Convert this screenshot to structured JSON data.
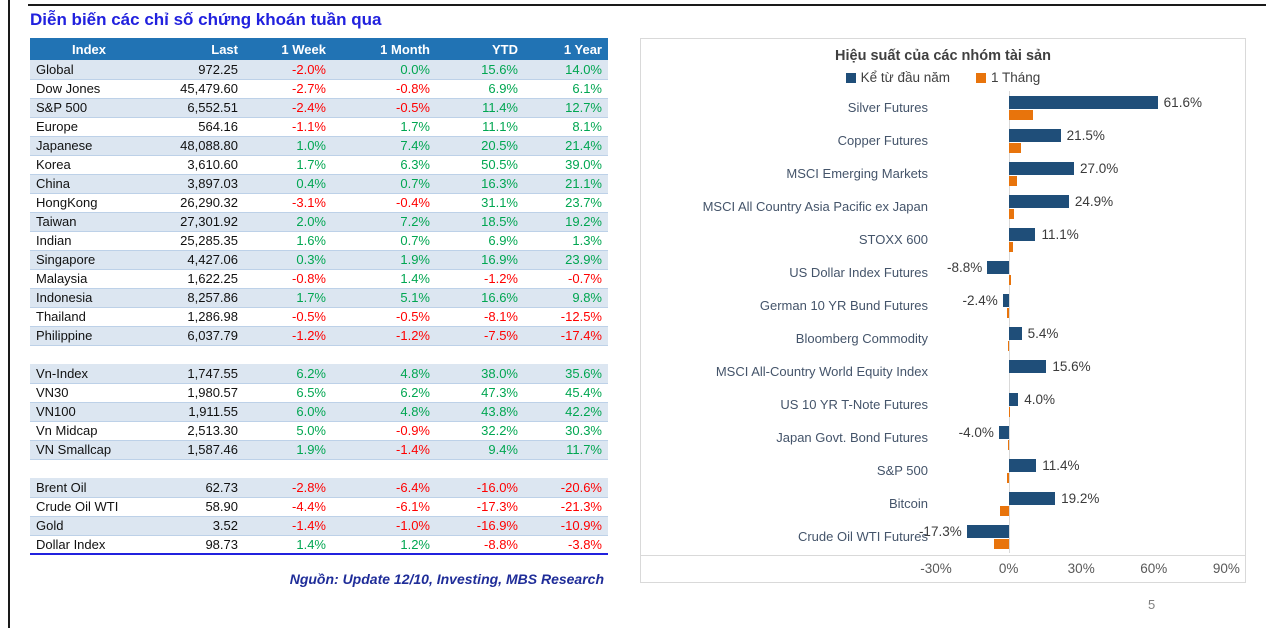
{
  "title": "Diễn biến các chỉ số chứng khoán tuần qua",
  "source_note": "Nguồn: Update 12/10, Investing, MBS Research",
  "page_number": "5",
  "colors": {
    "header_bg": "#2173B4",
    "row_shade": "#DCE6F1",
    "positive": "#00A651",
    "negative": "#FF0000",
    "title_blue": "#2121DE",
    "source_navy": "#1F2D99",
    "bar_ytd": "#1F4E79",
    "bar_month": "#E8740C"
  },
  "table": {
    "headers": [
      "Index",
      "Last",
      "1 Week",
      "1 Month",
      "YTD",
      "1 Year"
    ],
    "rows": [
      {
        "name": "Global",
        "last": "972.25",
        "w1": "-2.0%",
        "m1": "0.0%",
        "ytd": "15.6%",
        "y1": "14.0%"
      },
      {
        "name": "Dow Jones",
        "last": "45,479.60",
        "w1": "-2.7%",
        "m1": "-0.8%",
        "ytd": "6.9%",
        "y1": "6.1%"
      },
      {
        "name": "S&P 500",
        "last": "6,552.51",
        "w1": "-2.4%",
        "m1": "-0.5%",
        "ytd": "11.4%",
        "y1": "12.7%"
      },
      {
        "name": "Europe",
        "last": "564.16",
        "w1": "-1.1%",
        "m1": "1.7%",
        "ytd": "11.1%",
        "y1": "8.1%"
      },
      {
        "name": "Japanese",
        "last": "48,088.80",
        "w1": "1.0%",
        "m1": "7.4%",
        "ytd": "20.5%",
        "y1": "21.4%"
      },
      {
        "name": "Korea",
        "last": "3,610.60",
        "w1": "1.7%",
        "m1": "6.3%",
        "ytd": "50.5%",
        "y1": "39.0%"
      },
      {
        "name": "China",
        "last": "3,897.03",
        "w1": "0.4%",
        "m1": "0.7%",
        "ytd": "16.3%",
        "y1": "21.1%"
      },
      {
        "name": "HongKong",
        "last": "26,290.32",
        "w1": "-3.1%",
        "m1": "-0.4%",
        "ytd": "31.1%",
        "y1": "23.7%"
      },
      {
        "name": "Taiwan",
        "last": "27,301.92",
        "w1": "2.0%",
        "m1": "7.2%",
        "ytd": "18.5%",
        "y1": "19.2%"
      },
      {
        "name": "Indian",
        "last": "25,285.35",
        "w1": "1.6%",
        "m1": "0.7%",
        "ytd": "6.9%",
        "y1": "1.3%"
      },
      {
        "name": "Singapore",
        "last": "4,427.06",
        "w1": "0.3%",
        "m1": "1.9%",
        "ytd": "16.9%",
        "y1": "23.9%"
      },
      {
        "name": "Malaysia",
        "last": "1,622.25",
        "w1": "-0.8%",
        "m1": "1.4%",
        "ytd": "-1.2%",
        "y1": "-0.7%"
      },
      {
        "name": "Indonesia",
        "last": "8,257.86",
        "w1": "1.7%",
        "m1": "5.1%",
        "ytd": "16.6%",
        "y1": "9.8%"
      },
      {
        "name": "Thailand",
        "last": "1,286.98",
        "w1": "-0.5%",
        "m1": "-0.5%",
        "ytd": "-8.1%",
        "y1": "-12.5%"
      },
      {
        "name": "Philippine",
        "last": "6,037.79",
        "w1": "-1.2%",
        "m1": "-1.2%",
        "ytd": "-7.5%",
        "y1": "-17.4%"
      },
      {
        "name": "",
        "last": "",
        "w1": "",
        "m1": "",
        "ytd": "",
        "y1": ""
      },
      {
        "name": "Vn-Index",
        "last": "1,747.55",
        "w1": "6.2%",
        "m1": "4.8%",
        "ytd": "38.0%",
        "y1": "35.6%"
      },
      {
        "name": "VN30",
        "last": "1,980.57",
        "w1": "6.5%",
        "m1": "6.2%",
        "ytd": "47.3%",
        "y1": "45.4%"
      },
      {
        "name": "VN100",
        "last": "1,911.55",
        "w1": "6.0%",
        "m1": "4.8%",
        "ytd": "43.8%",
        "y1": "42.2%"
      },
      {
        "name": "Vn Midcap",
        "last": "2,513.30",
        "w1": "5.0%",
        "m1": "-0.9%",
        "ytd": "32.2%",
        "y1": "30.3%"
      },
      {
        "name": "VN Smallcap",
        "last": "1,587.46",
        "w1": "1.9%",
        "m1": "-1.4%",
        "ytd": "9.4%",
        "y1": "11.7%"
      },
      {
        "name": "",
        "last": "",
        "w1": "",
        "m1": "",
        "ytd": "",
        "y1": ""
      },
      {
        "name": "Brent Oil",
        "last": "62.73",
        "w1": "-2.8%",
        "m1": "-6.4%",
        "ytd": "-16.0%",
        "y1": "-20.6%"
      },
      {
        "name": "Crude Oil WTI",
        "last": "58.90",
        "w1": "-4.4%",
        "m1": "-6.1%",
        "ytd": "-17.3%",
        "y1": "-21.3%"
      },
      {
        "name": "Gold",
        "last": "3.52",
        "w1": "-1.4%",
        "m1": "-1.0%",
        "ytd": "-16.9%",
        "y1": "-10.9%"
      },
      {
        "name": "Dollar Index",
        "last": "98.73",
        "w1": "1.4%",
        "m1": "1.2%",
        "ytd": "-8.8%",
        "y1": "-3.8%"
      }
    ]
  },
  "chart_data": {
    "type": "bar",
    "orientation": "horizontal",
    "title": "Hiệu suất của các nhóm tài sản",
    "legend_position": "top",
    "grid": false,
    "categories": [
      "Silver Futures",
      "Copper Futures",
      "MSCI Emerging Markets",
      "MSCI All Country Asia Pacific ex Japan",
      "STOXX 600",
      "US Dollar Index Futures",
      "German 10 YR Bund Futures",
      "Bloomberg Commodity",
      "MSCI All-Country World Equity Index",
      "US 10 YR T-Note Futures",
      "Japan Govt. Bond Futures",
      "S&P 500",
      "Bitcoin",
      "Crude Oil WTI Futures"
    ],
    "series": [
      {
        "name": "Kể từ đầu năm",
        "color": "#1F4E79",
        "values": [
          61.6,
          21.5,
          27.0,
          24.9,
          11.1,
          -8.8,
          -2.4,
          5.4,
          15.6,
          4.0,
          -4.0,
          11.4,
          19.2,
          -17.3
        ],
        "labels": [
          "61.6%",
          "21.5%",
          "27.0%",
          "24.9%",
          "11.1%",
          "-8.8%",
          "-2.4%",
          "5.4%",
          "15.6%",
          "4.0%",
          "-4.0%",
          "11.4%",
          "19.2%",
          "-17.3%"
        ]
      },
      {
        "name": "1 Tháng",
        "color": "#E8740C",
        "values": [
          10.2,
          5.2,
          3.3,
          2.3,
          1.7,
          1.2,
          -0.5,
          -0.3,
          0.0,
          0.3,
          -0.3,
          -0.5,
          -3.4,
          -6.1
        ]
      }
    ],
    "x_ticks": [
      "-30%",
      "0%",
      "30%",
      "60%",
      "90%"
    ],
    "x_tick_values": [
      -30,
      0,
      30,
      60,
      90
    ],
    "xlim": [
      -30,
      94
    ]
  }
}
